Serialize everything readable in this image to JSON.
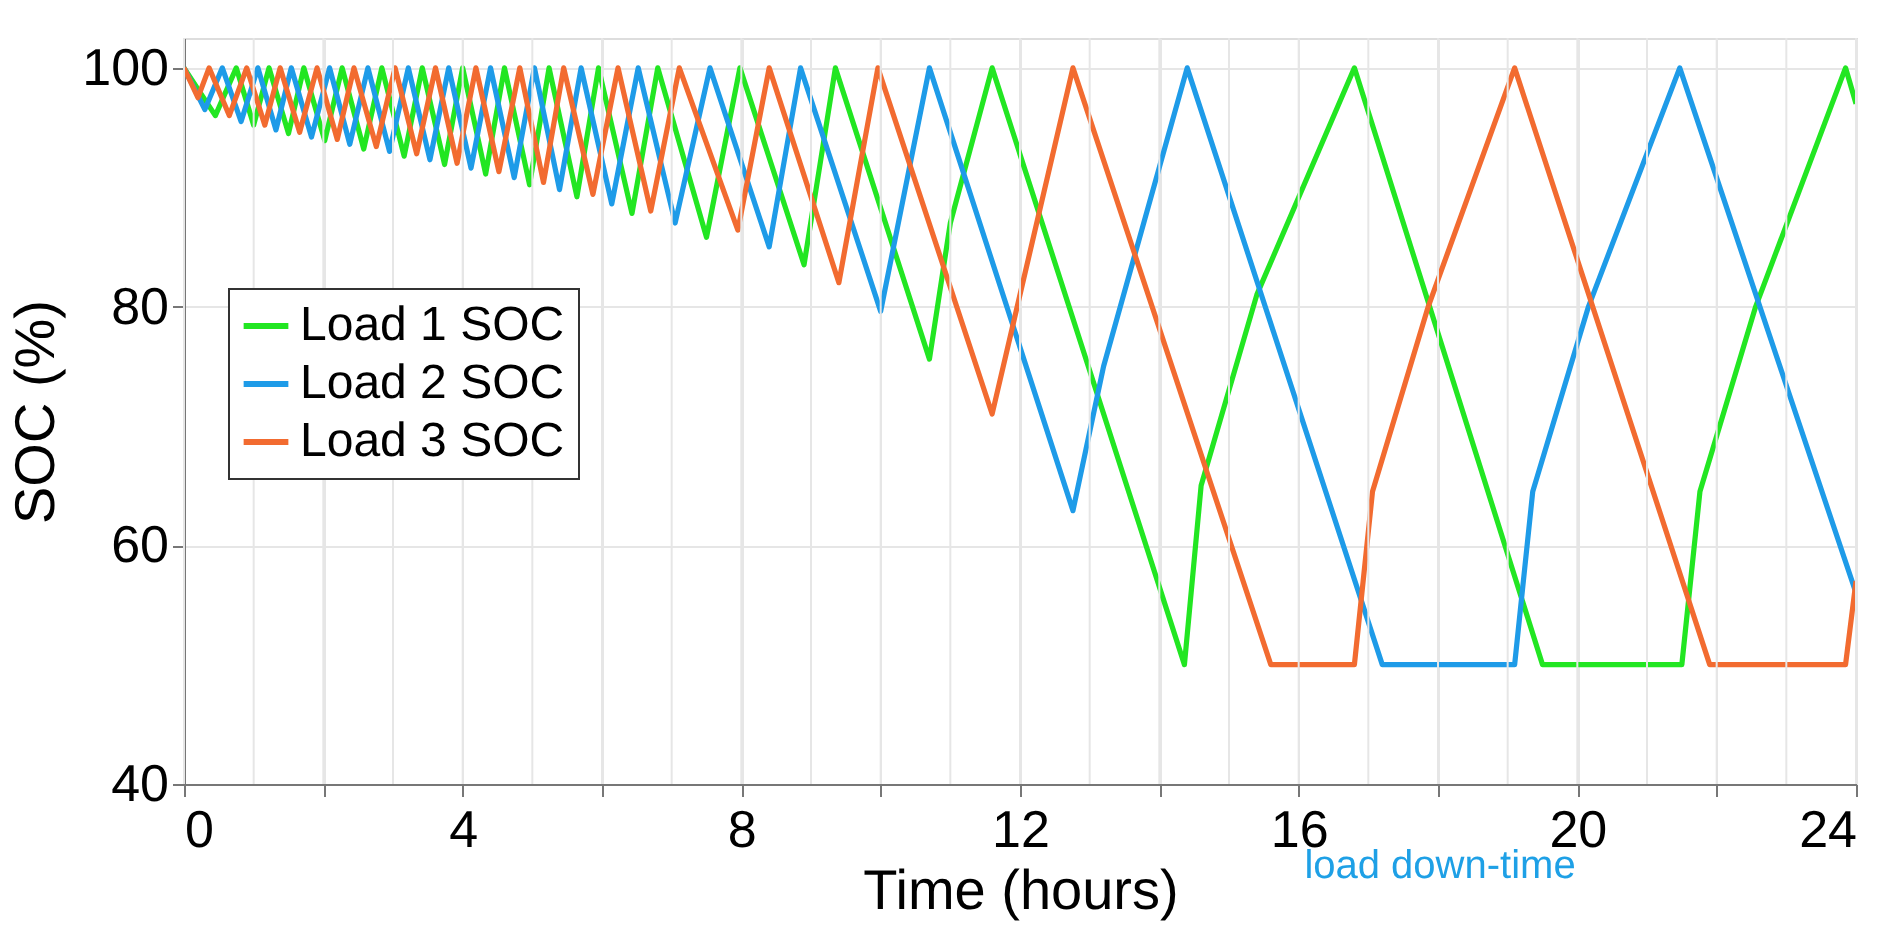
{
  "chart_data": {
    "type": "line",
    "xlabel": "Time (hours)",
    "ylabel": "SOC (%)",
    "xlim": [
      0,
      24
    ],
    "ylim": [
      40,
      102.5
    ],
    "xticks": [
      0,
      {
        "value": 1,
        "label": null
      },
      {
        "value": 2,
        "label": null
      },
      {
        "value": 3,
        "label": null
      },
      4,
      {
        "value": 5,
        "label": null
      },
      {
        "value": 6,
        "label": null
      },
      {
        "value": 7,
        "label": null
      },
      8,
      {
        "value": 9,
        "label": null
      },
      {
        "value": 10,
        "label": null
      },
      {
        "value": 11,
        "label": null
      },
      12,
      {
        "value": 13,
        "label": null
      },
      {
        "value": 14,
        "label": null
      },
      {
        "value": 15,
        "label": null
      },
      16,
      {
        "value": 17,
        "label": null
      },
      {
        "value": 18,
        "label": null
      },
      {
        "value": 19,
        "label": null
      },
      20,
      {
        "value": 21,
        "label": null
      },
      {
        "value": 22,
        "label": null
      },
      {
        "value": 23,
        "label": null
      },
      24
    ],
    "yticks": [
      40,
      60,
      80,
      100
    ],
    "grid": true,
    "legend": "left",
    "line_style": "solid",
    "marker": "none",
    "annotations": [
      "load down-time"
    ],
    "series": [
      {
        "name": "Load 1 SOC",
        "color": "#22e622",
        "x": [
          0,
          0.45,
          0.75,
          1.0,
          1.22,
          1.5,
          1.72,
          2.02,
          2.27,
          2.58,
          2.84,
          3.16,
          3.42,
          3.74,
          4.0,
          4.33,
          4.6,
          4.96,
          5.24,
          5.64,
          5.95,
          6.43,
          6.8,
          7.5,
          7.98,
          8.9,
          9.35,
          10.7,
          11.0,
          11.6,
          14.36,
          14.6,
          15.4,
          16.8,
          19.5,
          21.5,
          21.76,
          22.56,
          23.85,
          24
        ],
        "values": [
          100,
          96,
          100,
          95.2,
          100,
          94.5,
          100,
          93.9,
          100,
          93.2,
          100,
          92.6,
          100,
          91.9,
          100,
          91.1,
          100,
          90.2,
          100,
          89.2,
          100,
          87.8,
          100,
          85.8,
          100,
          83.5,
          100,
          75.6,
          87,
          100,
          50,
          65,
          81,
          100,
          50,
          50,
          64.5,
          80,
          100,
          97
        ]
      },
      {
        "name": "Load 2 SOC",
        "color": "#1e9be8",
        "x": [
          0,
          0.3,
          0.55,
          0.82,
          1.06,
          1.32,
          1.54,
          1.83,
          2.09,
          2.38,
          2.64,
          2.95,
          3.22,
          3.53,
          3.8,
          4.12,
          4.4,
          4.74,
          5.03,
          5.39,
          5.7,
          6.14,
          6.52,
          7.05,
          7.55,
          8.4,
          8.85,
          10.0,
          10.7,
          12.76,
          13.2,
          14.4,
          17.2,
          19.1,
          19.36,
          20.16,
          21.47,
          24
        ],
        "values": [
          100,
          96.5,
          100,
          95.5,
          100,
          94.8,
          100,
          94.2,
          100,
          93.6,
          100,
          93,
          100,
          92.3,
          100,
          91.6,
          100,
          90.8,
          100,
          89.8,
          100,
          88.6,
          100,
          87,
          100,
          85,
          100,
          79.6,
          100,
          62.9,
          75,
          100,
          50,
          50,
          64.5,
          80,
          100,
          56
        ]
      },
      {
        "name": "Load 3 SOC",
        "color": "#f26b30",
        "x": [
          0,
          0.2,
          0.36,
          0.65,
          0.9,
          1.16,
          1.38,
          1.66,
          1.91,
          2.2,
          2.44,
          2.76,
          3.03,
          3.34,
          3.61,
          3.92,
          4.19,
          4.52,
          4.82,
          5.16,
          5.45,
          5.87,
          6.23,
          6.7,
          7.11,
          7.95,
          8.4,
          9.4,
          9.96,
          11.6,
          12.76,
          15.6,
          16.8,
          17.06,
          17.86,
          19.1,
          21.9,
          23.85,
          24
        ],
        "values": [
          100,
          97.5,
          100,
          96,
          100,
          95.2,
          100,
          94.6,
          100,
          94,
          100,
          93.4,
          100,
          92.8,
          100,
          92,
          100,
          91.3,
          100,
          90.4,
          100,
          89.4,
          100,
          88,
          100,
          86.4,
          100,
          82,
          100,
          71,
          100,
          50,
          50,
          64.5,
          80,
          100,
          50,
          50,
          57
        ]
      }
    ]
  }
}
